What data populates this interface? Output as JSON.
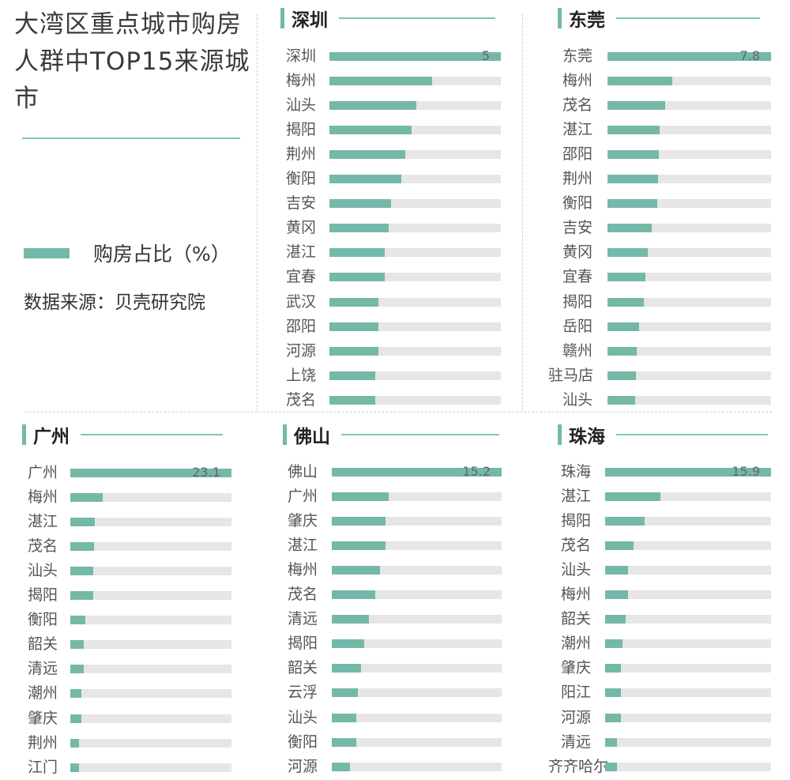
{
  "title": "大湾区重点城市购房人群中TOP15来源城市",
  "legend": {
    "label": "购房占比（%）",
    "color": "#74b9a8"
  },
  "source": "数据来源：贝壳研究院",
  "colors": {
    "accent": "#74b9a8",
    "track": "#e6e6e6",
    "divider": "#cfcfcf"
  },
  "chart_data": [
    {
      "type": "bar",
      "title": "深圳",
      "max_value": 5,
      "categories": [
        "深圳",
        "梅州",
        "汕头",
        "揭阳",
        "荆州",
        "衡阳",
        "吉安",
        "黄冈",
        "湛江",
        "宜春",
        "武汉",
        "邵阳",
        "河源",
        "上饶",
        "茂名"
      ],
      "values": [
        5,
        3.0,
        2.53,
        2.4,
        2.22,
        2.1,
        1.8,
        1.72,
        1.62,
        1.62,
        1.42,
        1.42,
        1.42,
        1.33,
        1.33
      ],
      "value_labels": [
        "5",
        "",
        "",
        "",
        "",
        "",
        "",
        "",
        "",
        "",
        "",
        "",
        "",
        "",
        ""
      ]
    },
    {
      "type": "bar",
      "title": "东莞",
      "max_value": 7.8,
      "categories": [
        "东莞",
        "梅州",
        "茂名",
        "湛江",
        "邵阳",
        "荆州",
        "衡阳",
        "吉安",
        "黄冈",
        "宜春",
        "揭阳",
        "岳阳",
        "赣州",
        "驻马店",
        "汕头"
      ],
      "values": [
        7.8,
        3.1,
        2.75,
        2.48,
        2.45,
        2.4,
        2.38,
        2.1,
        1.92,
        1.82,
        1.75,
        1.5,
        1.4,
        1.35,
        1.3
      ],
      "value_labels": [
        "7.8",
        "",
        "",
        "",
        "",
        "",
        "",
        "",
        "",
        "",
        "",
        "",
        "",
        "",
        ""
      ]
    },
    {
      "type": "bar",
      "title": "广州",
      "max_value": 23.1,
      "categories": [
        "广州",
        "梅州",
        "湛江",
        "茂名",
        "汕头",
        "揭阳",
        "衡阳",
        "韶关",
        "清远",
        "潮州",
        "肇庆",
        "荆州",
        "江门"
      ],
      "values": [
        23.1,
        4.6,
        3.5,
        3.4,
        3.3,
        3.3,
        2.1,
        1.9,
        1.9,
        1.6,
        1.6,
        1.3,
        1.3
      ],
      "value_labels": [
        "23.1",
        "",
        "",
        "",
        "",
        "",
        "",
        "",
        "",
        "",
        "",
        "",
        ""
      ]
    },
    {
      "type": "bar",
      "title": "佛山",
      "max_value": 15.2,
      "categories": [
        "佛山",
        "广州",
        "肇庆",
        "湛江",
        "梅州",
        "茂名",
        "清远",
        "揭阳",
        "韶关",
        "云浮",
        "汕头",
        "衡阳",
        "河源"
      ],
      "values": [
        15.2,
        5.1,
        4.8,
        4.8,
        4.3,
        3.9,
        3.3,
        2.9,
        2.6,
        2.3,
        2.2,
        2.2,
        1.6
      ],
      "value_labels": [
        "15.2",
        "",
        "",
        "",
        "",
        "",
        "",
        "",
        "",
        "",
        "",
        "",
        ""
      ]
    },
    {
      "type": "bar",
      "title": "珠海",
      "max_value": 15.9,
      "categories": [
        "珠海",
        "湛江",
        "揭阳",
        "茂名",
        "汕头",
        "梅州",
        "韶关",
        "潮州",
        "肇庆",
        "阳江",
        "河源",
        "清远",
        "齐齐哈尔"
      ],
      "values": [
        15.9,
        5.3,
        3.8,
        2.7,
        2.2,
        2.2,
        2.0,
        1.7,
        1.5,
        1.5,
        1.5,
        1.1,
        1.1
      ],
      "value_labels": [
        "15.9",
        "",
        "",
        "",
        "",
        "",
        "",
        "",
        "",
        "",
        "",
        "",
        ""
      ]
    }
  ]
}
